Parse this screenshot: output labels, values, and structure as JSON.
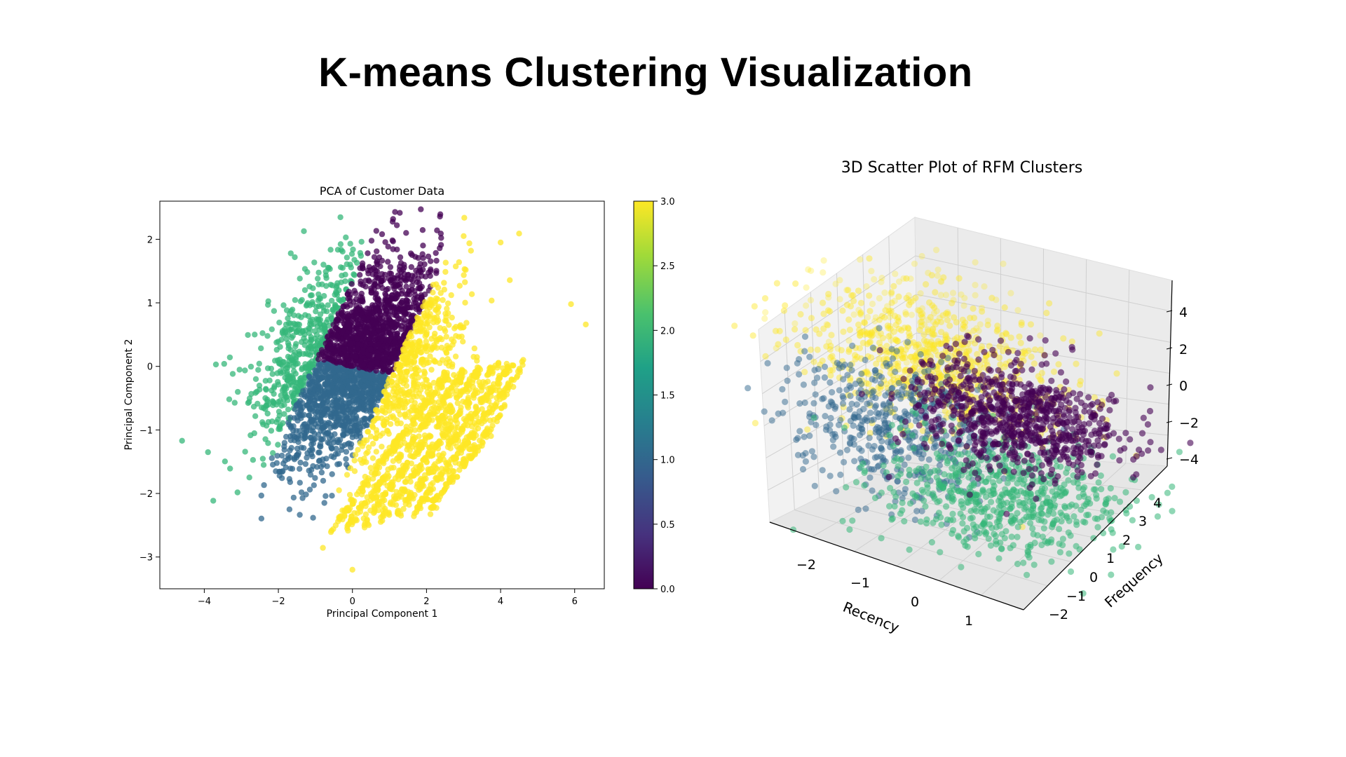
{
  "title": "K-means Clustering Visualization",
  "chart_data": [
    {
      "type": "scatter",
      "title": "PCA of Customer Data",
      "xlabel": "Principal Component 1",
      "ylabel": "Principal Component 2",
      "xlim": [
        -5.2,
        6.8
      ],
      "ylim": [
        -3.5,
        2.6
      ],
      "xticks": [
        -4,
        -2,
        0,
        2,
        4,
        6
      ],
      "yticks": [
        -3,
        -2,
        -1,
        0,
        1,
        2
      ],
      "xtick_labels": [
        "−4",
        "−2",
        "0",
        "2",
        "4",
        "6"
      ],
      "ytick_labels": [
        "−3",
        "−2",
        "−1",
        "0",
        "1",
        "2"
      ],
      "colorbar": {
        "range": [
          0,
          3
        ],
        "ticks": [
          "0.0",
          "0.5",
          "1.0",
          "1.5",
          "2.0",
          "2.5",
          "3.0"
        ],
        "colormap": "viridis"
      },
      "grid": false,
      "series": [
        {
          "cluster": 0,
          "color": "#440154",
          "center": [
            0.3,
            0.9
          ],
          "x_range": [
            -1.0,
            1.2
          ],
          "y_range": [
            0.0,
            2.45
          ],
          "approx_points": 1200
        },
        {
          "cluster": 1,
          "color": "#31688e",
          "center": [
            0.2,
            -0.8
          ],
          "x_range": [
            -1.0,
            1.6
          ],
          "y_range": [
            -3.2,
            0.0
          ],
          "approx_points": 900
        },
        {
          "cluster": 2,
          "color": "#35b779",
          "center": [
            -1.6,
            0.0
          ],
          "x_range": [
            -4.6,
            -0.6
          ],
          "y_range": [
            -2.3,
            1.1
          ],
          "approx_points": 1100
        },
        {
          "cluster": 3,
          "color": "#fde725",
          "center": [
            1.9,
            0.3
          ],
          "x_range": [
            1.0,
            6.3
          ],
          "y_range": [
            -2.0,
            1.9
          ],
          "approx_points": 1000
        }
      ]
    },
    {
      "type": "scatter",
      "title": "3D Scatter Plot of RFM Clusters",
      "xlabel": "Recency",
      "ylabel": "Frequency",
      "zlabel": "",
      "xticks": [
        "−2",
        "−1",
        "0",
        "1"
      ],
      "yticks": [
        "−2",
        "−1",
        "0",
        "1",
        "2",
        "3",
        "4"
      ],
      "zticks": [
        "−4",
        "−2",
        "0",
        "2",
        "4"
      ],
      "grid": true,
      "series": [
        {
          "cluster": 0,
          "color": "#440154",
          "region": "right-center"
        },
        {
          "cluster": 1,
          "color": "#31688e",
          "region": "left-center"
        },
        {
          "cluster": 2,
          "color": "#35b779",
          "region": "bottom-center"
        },
        {
          "cluster": 3,
          "color": "#fde725",
          "region": "top-left"
        }
      ]
    }
  ]
}
